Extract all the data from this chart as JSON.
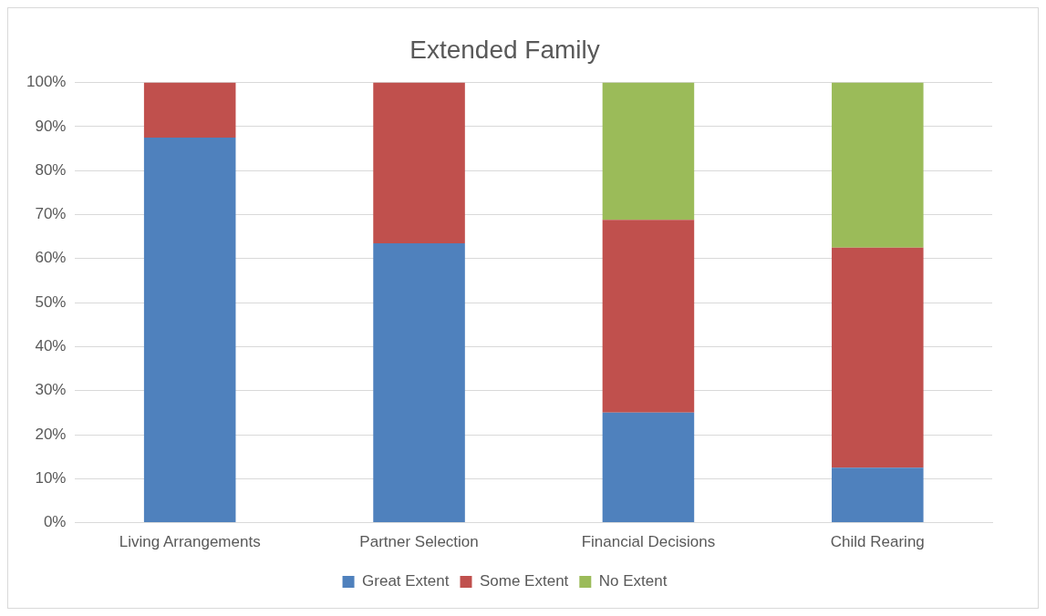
{
  "chart_data": {
    "type": "bar",
    "title": "Extended Family",
    "categories": [
      "Living Arrangements",
      "Partner Selection",
      "Financial Decisions",
      "Child Rearing"
    ],
    "stacked": true,
    "series": [
      {
        "name": "Great Extent",
        "color": "#4f81bd",
        "values": [
          87.5,
          63.5,
          25,
          12.5
        ]
      },
      {
        "name": "Some Extent",
        "color": "#c0504d",
        "values": [
          12.5,
          36.5,
          43.8,
          50
        ]
      },
      {
        "name": "No Extent",
        "color": "#9bbb59",
        "values": [
          null,
          null,
          31.2,
          37.5
        ]
      }
    ],
    "ylim": [
      0,
      100
    ],
    "yticks": [
      {
        "value": 0,
        "label": "0%"
      },
      {
        "value": 10,
        "label": "10%"
      },
      {
        "value": 20,
        "label": "20%"
      },
      {
        "value": 30,
        "label": "30%"
      },
      {
        "value": 40,
        "label": "40%"
      },
      {
        "value": 50,
        "label": "50%"
      },
      {
        "value": 60,
        "label": "60%"
      },
      {
        "value": 70,
        "label": "70%"
      },
      {
        "value": 80,
        "label": "80%"
      },
      {
        "value": 90,
        "label": "90%"
      },
      {
        "value": 100,
        "label": "100%"
      }
    ],
    "grid": "y",
    "legend": "bottom"
  }
}
